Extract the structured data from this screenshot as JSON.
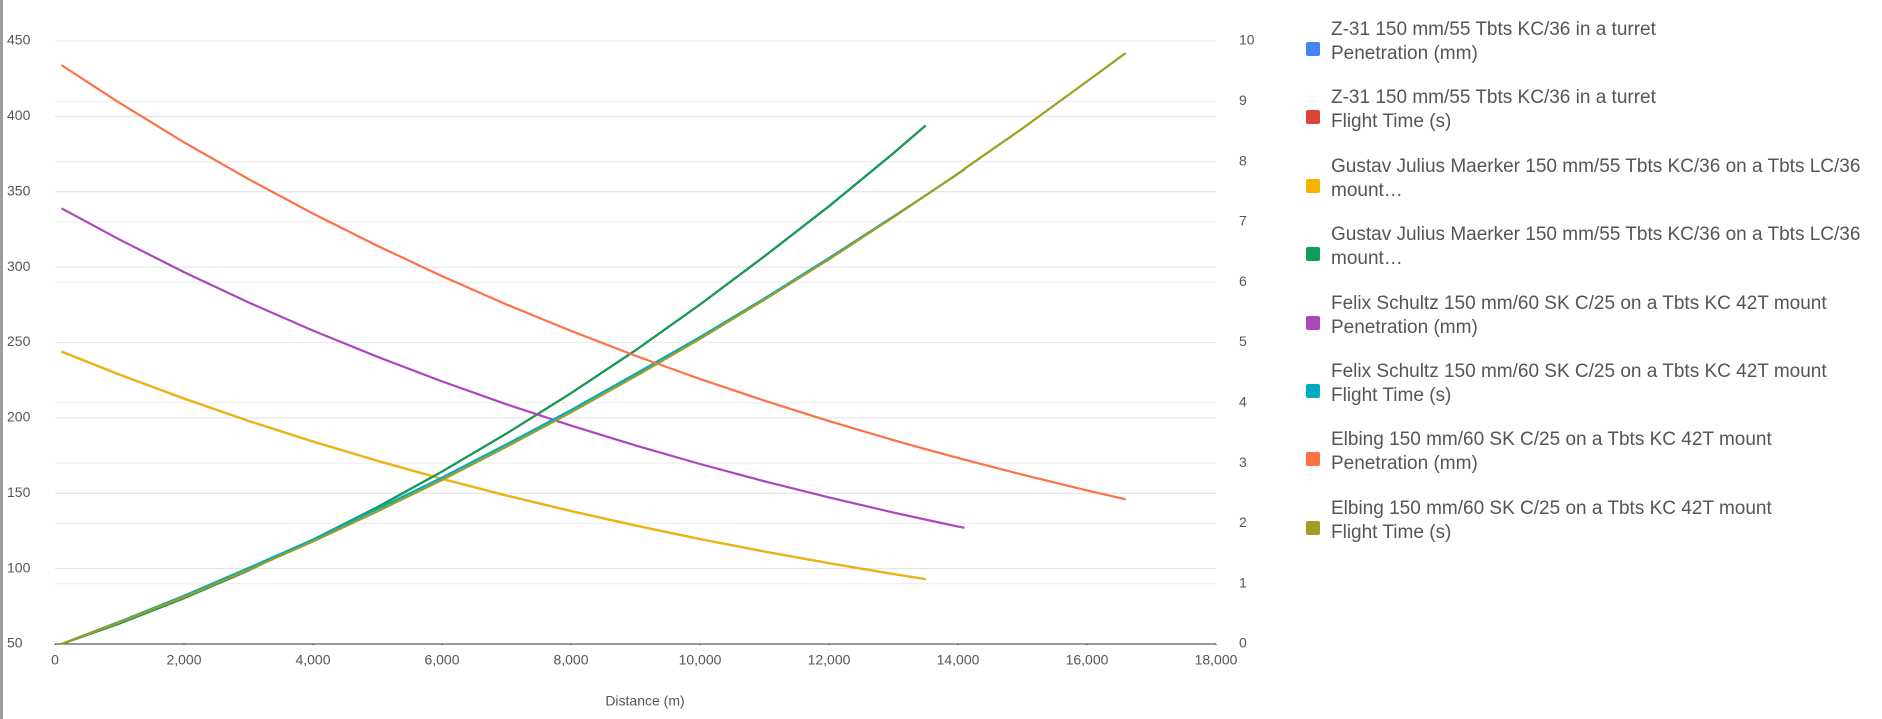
{
  "chart_data": {
    "type": "line",
    "x_label": "Distance (m)",
    "x": [
      100,
      1000,
      2000,
      3000,
      4000,
      5000,
      6000,
      7000,
      8000,
      9000,
      10000,
      11000,
      12000,
      13000,
      13500,
      14000,
      14100,
      15000,
      16000,
      16600
    ],
    "xlim": [
      0,
      18000
    ],
    "xticks": [
      0,
      {
        "value": 2000,
        "label": "2,000"
      },
      {
        "value": 4000,
        "label": "4,000"
      },
      {
        "value": 6000,
        "label": "6,000"
      },
      {
        "value": 8000,
        "label": "8,000"
      },
      {
        "value": 10000,
        "label": "10,000"
      },
      {
        "value": 12000,
        "label": "12,000"
      },
      {
        "value": 14000,
        "label": "14,000"
      },
      {
        "value": 16000,
        "label": "16,000"
      },
      {
        "value": 18000,
        "label": "18,000"
      }
    ],
    "ylim": [
      50,
      450
    ],
    "yticks": [
      50,
      100,
      150,
      200,
      250,
      300,
      350,
      400,
      450
    ],
    "y2lim": [
      0,
      10
    ],
    "y2ticks": [
      0,
      1,
      2,
      3,
      4,
      5,
      6,
      7,
      8,
      9,
      10
    ],
    "grid": true,
    "legend": "right",
    "series": [
      {
        "name": "Z-31 150 mm/55 Tbts KC/36 in a turret\nPenetration (mm)",
        "color": "#4285f4",
        "values": [
          244,
          228.7,
          212.8,
          198.0,
          184.3,
          171.5,
          159.6,
          148.5,
          138.2,
          128.6,
          119.6,
          111.3,
          103.6,
          96.4,
          93.0,
          null,
          null,
          null,
          null,
          null
        ]
      },
      {
        "name": "Z-31 150 mm/55 Tbts KC/36 in a turret\nFlight Time (s)",
        "color": "#db4437",
        "axis": "y2",
        "values": [
          0,
          0.34,
          0.76,
          1.22,
          1.73,
          2.27,
          2.86,
          3.49,
          4.16,
          4.87,
          5.63,
          6.43,
          7.26,
          8.14,
          8.6,
          null,
          null,
          null,
          null,
          null
        ]
      },
      {
        "name": "Gustav Julius Maerker 150 mm/55 Tbts KC/36 on a Tbts LC/36\nmount…",
        "color": "#f4b400",
        "values": [
          244,
          228.7,
          212.8,
          198.0,
          184.3,
          171.5,
          159.6,
          148.5,
          138.2,
          128.6,
          119.6,
          111.3,
          103.6,
          96.4,
          93.0,
          null,
          null,
          null,
          null,
          null
        ]
      },
      {
        "name": "Gustav Julius Maerker 150 mm/55 Tbts KC/36 on a Tbts LC/36\nmount…",
        "color": "#0f9d58",
        "axis": "y2",
        "values": [
          0,
          0.34,
          0.76,
          1.22,
          1.73,
          2.27,
          2.86,
          3.49,
          4.16,
          4.87,
          5.63,
          6.43,
          7.26,
          8.14,
          8.6,
          null,
          null,
          null,
          null,
          null
        ]
      },
      {
        "name": "Felix Schultz 150 mm/60 SK C/25 on a Tbts KC 42T mount\nPenetration (mm)",
        "color": "#ab47bc",
        "values": [
          339,
          318.3,
          296.7,
          276.6,
          257.9,
          240.5,
          224.2,
          209.0,
          194.9,
          181.7,
          169.4,
          157.9,
          147.2,
          137.2,
          132.5,
          127.9,
          127.1,
          null,
          null,
          null
        ]
      },
      {
        "name": "Felix Schultz 150 mm/60 SK C/25 on a Tbts KC 42T mount\nFlight Time (s)",
        "color": "#00acc1",
        "axis": "y2",
        "values": [
          0,
          0.37,
          0.8,
          1.26,
          1.73,
          2.24,
          2.76,
          3.31,
          3.88,
          4.48,
          5.09,
          5.73,
          6.4,
          7.09,
          7.44,
          7.8,
          7.87,
          null,
          null,
          null
        ]
      },
      {
        "name": "Elbing 150 mm/60 SK C/25 on a Tbts KC 42T mount\nPenetration (mm)",
        "color": "#ff7043",
        "values": [
          434,
          409.0,
          382.8,
          358.4,
          335.5,
          314.1,
          294.0,
          275.2,
          257.7,
          241.2,
          225.8,
          211.4,
          197.9,
          185.2,
          179.2,
          173.4,
          172.3,
          162.3,
          151.9,
          146.0
        ]
      },
      {
        "name": "Elbing 150 mm/60 SK C/25 on a Tbts KC 42T mount\nFlight Time (s)",
        "color": "#9e9d24",
        "axis": "y2",
        "values": [
          0,
          0.36,
          0.78,
          1.23,
          1.7,
          2.2,
          2.72,
          3.27,
          3.84,
          4.44,
          5.06,
          5.71,
          6.38,
          7.08,
          7.44,
          7.8,
          7.88,
          8.55,
          9.33,
          9.8
        ]
      }
    ]
  }
}
